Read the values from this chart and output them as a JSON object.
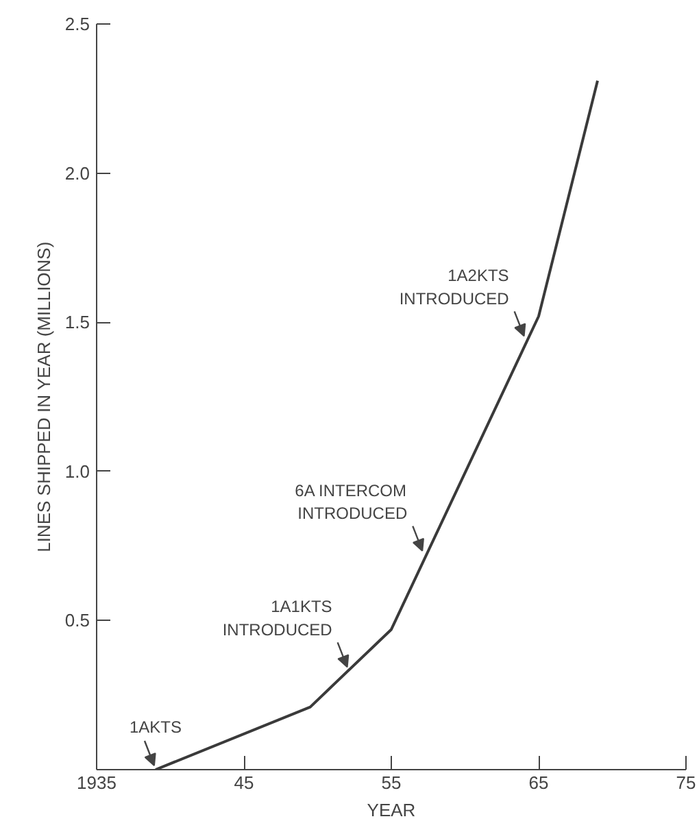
{
  "chart_data": {
    "type": "line",
    "xlabel": "YEAR",
    "ylabel": "LINES SHIPPED IN YEAR (MILLIONS)",
    "x": [
      1939,
      1949.5,
      1955,
      1965,
      1969
    ],
    "series": [
      {
        "color": "#3a3a3a",
        "values": [
          0,
          0.21,
          0.47,
          1.52,
          2.31
        ]
      }
    ],
    "xlim": [
      1935,
      1975
    ],
    "xticks": [
      {
        "value": 1935,
        "label": "1935"
      },
      {
        "value": 1945,
        "label": "45"
      },
      {
        "value": 1955,
        "label": "55"
      },
      {
        "value": 1965,
        "label": "65"
      },
      {
        "value": 1975,
        "label": "75"
      }
    ],
    "ylim": [
      0,
      2.5
    ],
    "yticks": [
      0.5,
      {
        "value": 1,
        "label": "1.0"
      },
      1.5,
      {
        "value": 2,
        "label": "2.0"
      },
      2.5
    ],
    "annotations": [
      {
        "text": "1AKTS",
        "x": 1939,
        "y": 0
      },
      {
        "text": "1A1KTS\nINTRODUCED",
        "x": 1952.1,
        "y": 0.33
      },
      {
        "text": "6A INTERCOM\nINTRODUCED",
        "x": 1957.2,
        "y": 0.72
      },
      {
        "text": "1A2KTS\nINTRODUCED",
        "x": 1964.1,
        "y": 1.44
      }
    ],
    "grid": false,
    "marker": "none",
    "line_style": "solid"
  }
}
